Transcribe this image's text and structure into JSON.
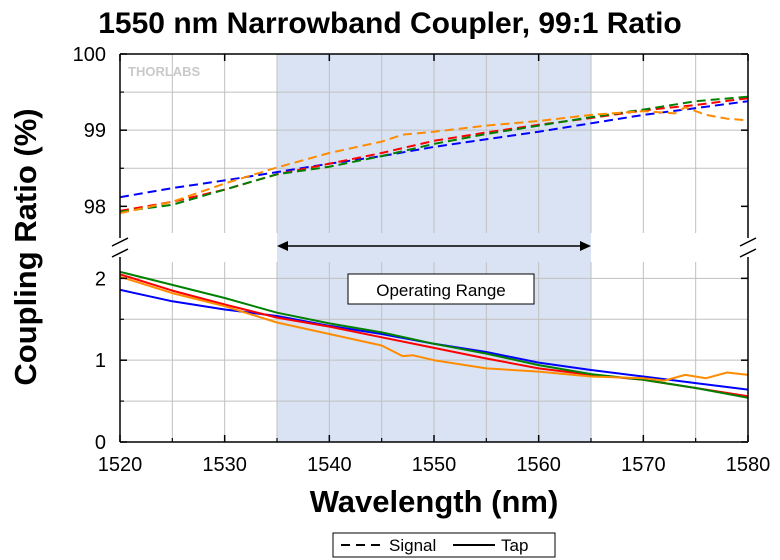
{
  "chart_data": {
    "type": "line",
    "title": "1550 nm Narrowband Coupler, 99:1 Ratio",
    "xlabel": "Wavelength (nm)",
    "ylabel": "Coupling Ratio (%)",
    "logo": "THORLABS",
    "xlim": [
      1520,
      1580
    ],
    "x_ticks": [
      "1520",
      "1530",
      "1540",
      "1550",
      "1560",
      "1570",
      "1580"
    ],
    "upper_panel": {
      "ylim": [
        97.65,
        100
      ],
      "y_ticks": [
        "98",
        "99",
        "100"
      ],
      "y_tick_values": [
        98,
        99,
        100
      ]
    },
    "lower_panel": {
      "ylim": [
        0,
        2.2
      ],
      "y_ticks": [
        "0",
        "1",
        "2"
      ],
      "y_tick_values": [
        0,
        1,
        2
      ]
    },
    "axis_break": true,
    "grid": true,
    "operating_range": {
      "x": [
        1535,
        1565
      ],
      "label": "Operating Range",
      "color": "#dae3f3"
    },
    "legend": {
      "placement": "bottom-center",
      "entries": [
        {
          "label": "Signal",
          "style": "dashed"
        },
        {
          "label": "Tap",
          "style": "solid"
        }
      ]
    },
    "series": [
      {
        "color": "#0000ff",
        "role": "signal",
        "points": [
          [
            1520,
            98.12
          ],
          [
            1525,
            98.24
          ],
          [
            1530,
            98.34
          ],
          [
            1535,
            98.45
          ],
          [
            1540,
            98.56
          ],
          [
            1545,
            98.66
          ],
          [
            1550,
            98.78
          ],
          [
            1555,
            98.88
          ],
          [
            1560,
            98.98
          ],
          [
            1565,
            99.09
          ],
          [
            1570,
            99.2
          ],
          [
            1575,
            99.29
          ],
          [
            1580,
            99.38
          ]
        ]
      },
      {
        "color": "#ff0000",
        "role": "signal",
        "points": [
          [
            1520,
            97.94
          ],
          [
            1525,
            98.06
          ],
          [
            1530,
            98.22
          ],
          [
            1535,
            98.42
          ],
          [
            1540,
            98.56
          ],
          [
            1545,
            98.7
          ],
          [
            1550,
            98.86
          ],
          [
            1555,
            98.97
          ],
          [
            1560,
            99.07
          ],
          [
            1565,
            99.16
          ],
          [
            1570,
            99.26
          ],
          [
            1575,
            99.33
          ],
          [
            1580,
            99.42
          ]
        ]
      },
      {
        "color": "#008000",
        "role": "signal",
        "points": [
          [
            1520,
            97.93
          ],
          [
            1525,
            98.02
          ],
          [
            1530,
            98.22
          ],
          [
            1535,
            98.42
          ],
          [
            1540,
            98.52
          ],
          [
            1545,
            98.66
          ],
          [
            1550,
            98.82
          ],
          [
            1555,
            98.95
          ],
          [
            1560,
            99.06
          ],
          [
            1565,
            99.17
          ],
          [
            1570,
            99.27
          ],
          [
            1575,
            99.38
          ],
          [
            1580,
            99.44
          ]
        ]
      },
      {
        "color": "#ff8c00",
        "role": "signal",
        "points": [
          [
            1520,
            97.91
          ],
          [
            1525,
            98.06
          ],
          [
            1530,
            98.3
          ],
          [
            1535,
            98.51
          ],
          [
            1540,
            98.7
          ],
          [
            1545,
            98.85
          ],
          [
            1547,
            98.94
          ],
          [
            1550,
            98.98
          ],
          [
            1555,
            99.06
          ],
          [
            1560,
            99.12
          ],
          [
            1565,
            99.2
          ],
          [
            1570,
            99.25
          ],
          [
            1573,
            99.22
          ],
          [
            1574,
            99.3
          ],
          [
            1576,
            99.2
          ],
          [
            1578,
            99.15
          ],
          [
            1580,
            99.13
          ]
        ]
      },
      {
        "color": "#0000ff",
        "role": "tap",
        "points": [
          [
            1520,
            1.86
          ],
          [
            1525,
            1.72
          ],
          [
            1530,
            1.62
          ],
          [
            1535,
            1.54
          ],
          [
            1540,
            1.42
          ],
          [
            1545,
            1.32
          ],
          [
            1550,
            1.2
          ],
          [
            1555,
            1.1
          ],
          [
            1560,
            0.97
          ],
          [
            1565,
            0.88
          ],
          [
            1570,
            0.8
          ],
          [
            1575,
            0.72
          ],
          [
            1580,
            0.64
          ]
        ]
      },
      {
        "color": "#ff0000",
        "role": "tap",
        "points": [
          [
            1520,
            2.05
          ],
          [
            1525,
            1.85
          ],
          [
            1530,
            1.68
          ],
          [
            1535,
            1.52
          ],
          [
            1540,
            1.41
          ],
          [
            1545,
            1.28
          ],
          [
            1550,
            1.15
          ],
          [
            1555,
            1.02
          ],
          [
            1560,
            0.9
          ],
          [
            1565,
            0.82
          ],
          [
            1570,
            0.76
          ],
          [
            1575,
            0.66
          ],
          [
            1580,
            0.56
          ]
        ]
      },
      {
        "color": "#008000",
        "role": "tap",
        "points": [
          [
            1520,
            2.08
          ],
          [
            1525,
            1.92
          ],
          [
            1530,
            1.76
          ],
          [
            1535,
            1.58
          ],
          [
            1540,
            1.45
          ],
          [
            1545,
            1.34
          ],
          [
            1550,
            1.2
          ],
          [
            1555,
            1.08
          ],
          [
            1560,
            0.94
          ],
          [
            1565,
            0.83
          ],
          [
            1570,
            0.76
          ],
          [
            1575,
            0.66
          ],
          [
            1580,
            0.54
          ]
        ]
      },
      {
        "color": "#ff8c00",
        "role": "tap",
        "points": [
          [
            1520,
            2.02
          ],
          [
            1525,
            1.82
          ],
          [
            1530,
            1.66
          ],
          [
            1535,
            1.46
          ],
          [
            1540,
            1.32
          ],
          [
            1545,
            1.18
          ],
          [
            1547,
            1.05
          ],
          [
            1548,
            1.06
          ],
          [
            1550,
            1.0
          ],
          [
            1555,
            0.9
          ],
          [
            1560,
            0.86
          ],
          [
            1565,
            0.8
          ],
          [
            1570,
            0.78
          ],
          [
            1572,
            0.75
          ],
          [
            1574,
            0.82
          ],
          [
            1576,
            0.78
          ],
          [
            1578,
            0.85
          ],
          [
            1580,
            0.82
          ]
        ]
      }
    ]
  }
}
